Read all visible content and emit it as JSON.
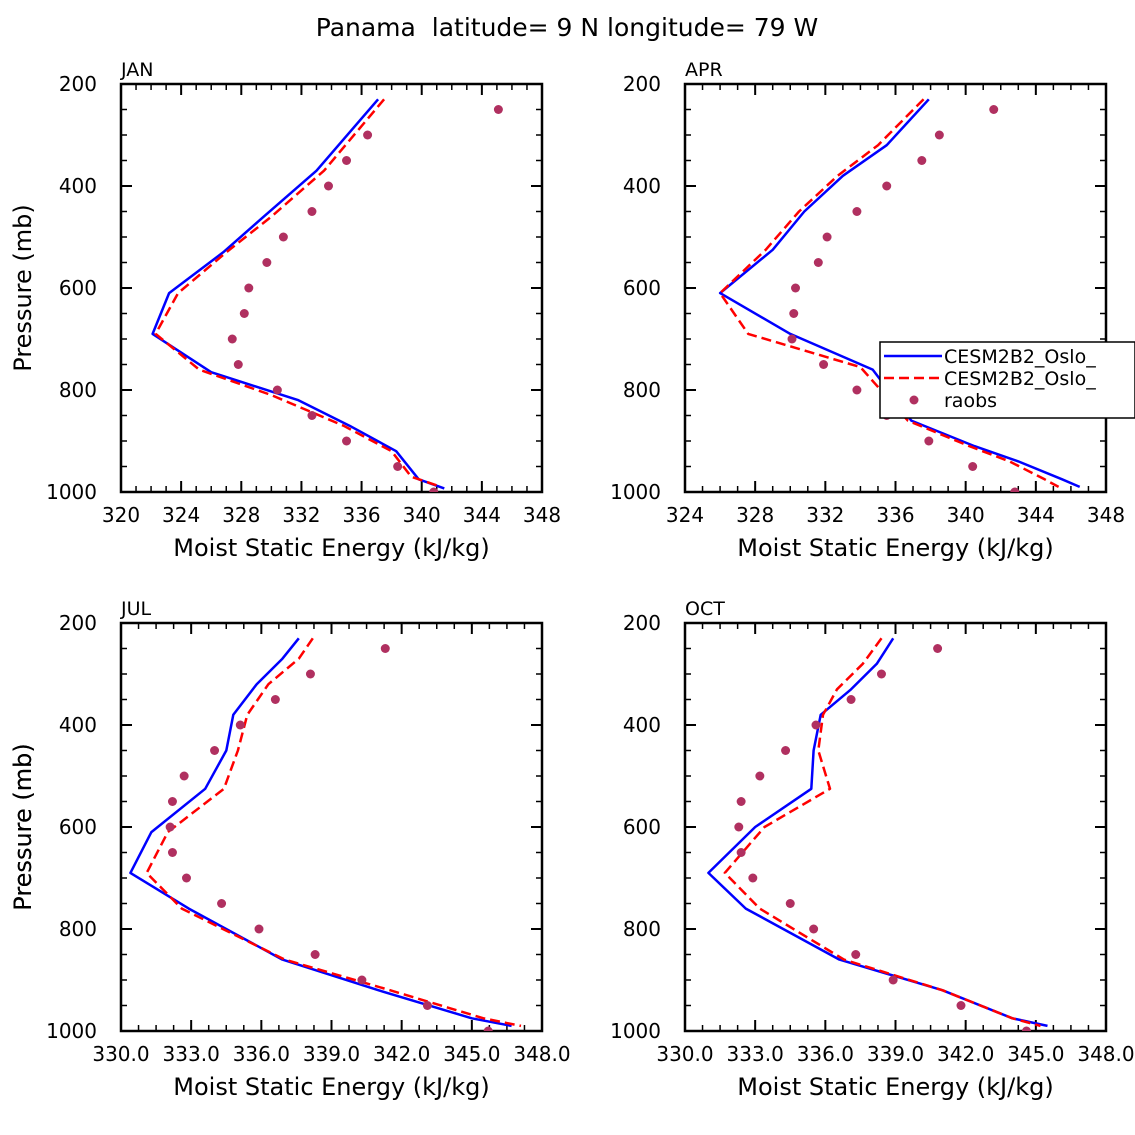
{
  "title": "Panama  latitude= 9 N longitude= 79 W",
  "colors": {
    "model1": "#0000ff",
    "model2": "#ff0000",
    "raobs": "#b03060",
    "axis": "#000000"
  },
  "legend": {
    "panel": "APR",
    "entries": [
      {
        "label": "CESM2B2_Oslo_",
        "style": "solid",
        "color": "#0000ff"
      },
      {
        "label": "CESM2B2_Oslo_",
        "style": "dashed",
        "color": "#ff0000"
      },
      {
        "label": "raobs",
        "style": "marker",
        "color": "#b03060"
      }
    ]
  },
  "chart_data": [
    {
      "type": "line",
      "month": "JAN",
      "xlabel": "Moist Static Energy (kJ/kg)",
      "ylabel": "Pressure (mb)",
      "xlim": [
        320,
        348
      ],
      "ylim": [
        1000,
        200
      ],
      "xticks": [
        "320",
        "324",
        "328",
        "332",
        "336",
        "340",
        "344",
        "348"
      ],
      "yticks": [
        "200",
        "400",
        "600",
        "800",
        "1000"
      ],
      "series": [
        {
          "name": "CESM2B2_Oslo_",
          "style": "solid",
          "points": [
            [
              337.1,
              230
            ],
            [
              333.0,
              370
            ],
            [
              329.5,
              460
            ],
            [
              326.8,
              530
            ],
            [
              323.2,
              610
            ],
            [
              322.1,
              690
            ],
            [
              326.0,
              765
            ],
            [
              331.8,
              820
            ],
            [
              335.2,
              870
            ],
            [
              338.3,
              920
            ],
            [
              339.8,
              975
            ],
            [
              341.5,
              993
            ]
          ]
        },
        {
          "name": "CESM2B2_Oslo_",
          "style": "dashed",
          "points": [
            [
              337.5,
              230
            ],
            [
              333.5,
              370
            ],
            [
              330.0,
              460
            ],
            [
              327.0,
              530
            ],
            [
              323.8,
              610
            ],
            [
              322.3,
              690
            ],
            [
              325.2,
              760
            ],
            [
              330.0,
              810
            ],
            [
              334.8,
              870
            ],
            [
              338.0,
              920
            ],
            [
              339.3,
              970
            ],
            [
              341.3,
              990
            ]
          ]
        },
        {
          "name": "raobs",
          "style": "marker",
          "points": [
            [
              345.1,
              250
            ],
            [
              336.4,
              300
            ],
            [
              335.0,
              350
            ],
            [
              333.8,
              400
            ],
            [
              332.7,
              450
            ],
            [
              330.8,
              500
            ],
            [
              329.7,
              550
            ],
            [
              328.5,
              600
            ],
            [
              328.2,
              650
            ],
            [
              327.4,
              700
            ],
            [
              327.8,
              750
            ],
            [
              330.4,
              800
            ],
            [
              332.7,
              850
            ],
            [
              335.0,
              900
            ],
            [
              338.4,
              950
            ],
            [
              340.8,
              1000
            ]
          ]
        }
      ]
    },
    {
      "type": "line",
      "month": "APR",
      "xlabel": "Moist Static Energy (kJ/kg)",
      "ylabel": "",
      "xlim": [
        324,
        348
      ],
      "ylim": [
        1000,
        200
      ],
      "xticks": [
        "324",
        "328",
        "332",
        "336",
        "340",
        "344",
        "348"
      ],
      "yticks": [
        "200",
        "400",
        "600",
        "800",
        "1000"
      ],
      "series": [
        {
          "name": "CESM2B2_Oslo_",
          "style": "solid",
          "points": [
            [
              337.9,
              230
            ],
            [
              335.5,
              320
            ],
            [
              333.0,
              380
            ],
            [
              330.8,
              450
            ],
            [
              329.0,
              525
            ],
            [
              326.0,
              610
            ],
            [
              330.0,
              690
            ],
            [
              334.7,
              760
            ],
            [
              336.9,
              860
            ],
            [
              340.5,
              910
            ],
            [
              343.0,
              940
            ],
            [
              345.5,
              975
            ],
            [
              346.5,
              990
            ]
          ]
        },
        {
          "name": "CESM2B2_Oslo_",
          "style": "dashed",
          "points": [
            [
              337.6,
              230
            ],
            [
              335.0,
              320
            ],
            [
              332.7,
              380
            ],
            [
              330.5,
              450
            ],
            [
              328.6,
              525
            ],
            [
              326.0,
              610
            ],
            [
              327.6,
              690
            ],
            [
              334.0,
              755
            ],
            [
              336.7,
              860
            ],
            [
              340.2,
              910
            ],
            [
              342.5,
              940
            ],
            [
              344.5,
              975
            ],
            [
              345.3,
              990
            ]
          ]
        },
        {
          "name": "raobs",
          "style": "marker",
          "points": [
            [
              341.6,
              250
            ],
            [
              338.5,
              300
            ],
            [
              337.5,
              350
            ],
            [
              335.5,
              400
            ],
            [
              333.8,
              450
            ],
            [
              332.1,
              500
            ],
            [
              331.6,
              550
            ],
            [
              330.3,
              600
            ],
            [
              330.2,
              650
            ],
            [
              330.1,
              700
            ],
            [
              331.9,
              750
            ],
            [
              333.8,
              800
            ],
            [
              335.5,
              850
            ],
            [
              337.9,
              900
            ],
            [
              340.4,
              950
            ],
            [
              342.8,
              1000
            ]
          ]
        }
      ]
    },
    {
      "type": "line",
      "month": "JUL",
      "xlabel": "Moist Static Energy (kJ/kg)",
      "ylabel": "Pressure (mb)",
      "xlim": [
        330,
        348
      ],
      "ylim": [
        1000,
        200
      ],
      "xticks": [
        "330.0",
        "333.0",
        "336.0",
        "339.0",
        "342.0",
        "345.0",
        "348.0"
      ],
      "yticks": [
        "200",
        "400",
        "600",
        "800",
        "1000"
      ],
      "series": [
        {
          "name": "CESM2B2_Oslo_",
          "style": "solid",
          "points": [
            [
              337.6,
              230
            ],
            [
              336.9,
              270
            ],
            [
              335.8,
              320
            ],
            [
              334.8,
              380
            ],
            [
              334.5,
              450
            ],
            [
              333.6,
              525
            ],
            [
              331.3,
              610
            ],
            [
              330.4,
              690
            ],
            [
              332.9,
              760
            ],
            [
              336.9,
              860
            ],
            [
              341.0,
              920
            ],
            [
              345.0,
              975
            ],
            [
              346.7,
              990
            ]
          ]
        },
        {
          "name": "CESM2B2_Oslo_",
          "style": "dashed",
          "points": [
            [
              338.2,
              230
            ],
            [
              337.6,
              270
            ],
            [
              336.3,
              320
            ],
            [
              335.4,
              380
            ],
            [
              335.0,
              450
            ],
            [
              334.4,
              525
            ],
            [
              332.0,
              610
            ],
            [
              331.1,
              690
            ],
            [
              332.6,
              760
            ],
            [
              337.0,
              860
            ],
            [
              341.5,
              920
            ],
            [
              345.5,
              975
            ],
            [
              347.1,
              990
            ]
          ]
        },
        {
          "name": "raobs",
          "style": "marker",
          "points": [
            [
              341.3,
              250
            ],
            [
              338.1,
              300
            ],
            [
              336.6,
              350
            ],
            [
              335.1,
              400
            ],
            [
              334.0,
              450
            ],
            [
              332.7,
              500
            ],
            [
              332.2,
              550
            ],
            [
              332.1,
              600
            ],
            [
              332.2,
              650
            ],
            [
              332.8,
              700
            ],
            [
              334.3,
              750
            ],
            [
              335.9,
              800
            ],
            [
              338.3,
              850
            ],
            [
              340.3,
              900
            ],
            [
              343.1,
              950
            ],
            [
              345.7,
              1000
            ]
          ]
        }
      ]
    },
    {
      "type": "line",
      "month": "OCT",
      "xlabel": "Moist Static Energy (kJ/kg)",
      "ylabel": "Pressure (mb)",
      "xlim": [
        330,
        348
      ],
      "ylim": [
        1000,
        200
      ],
      "xticks": [
        "330.0",
        "333.0",
        "336.0",
        "339.0",
        "342.0",
        "345.0",
        "348.0"
      ],
      "yticks": [
        "200",
        "400",
        "600",
        "800",
        "1000"
      ],
      "series": [
        {
          "name": "CESM2B2_Oslo_",
          "style": "solid",
          "points": [
            [
              338.9,
              230
            ],
            [
              338.2,
              280
            ],
            [
              337.1,
              330
            ],
            [
              335.8,
              380
            ],
            [
              335.5,
              450
            ],
            [
              335.4,
              525
            ],
            [
              333.0,
              600
            ],
            [
              331.0,
              690
            ],
            [
              332.6,
              760
            ],
            [
              336.6,
              860
            ],
            [
              341.0,
              920
            ],
            [
              344.0,
              975
            ],
            [
              345.5,
              990
            ]
          ]
        },
        {
          "name": "CESM2B2_Oslo_",
          "style": "dashed",
          "points": [
            [
              338.4,
              230
            ],
            [
              337.6,
              280
            ],
            [
              336.5,
              330
            ],
            [
              335.9,
              380
            ],
            [
              335.7,
              450
            ],
            [
              336.2,
              525
            ],
            [
              333.4,
              600
            ],
            [
              331.7,
              690
            ],
            [
              333.2,
              760
            ],
            [
              336.8,
              860
            ],
            [
              341.0,
              920
            ],
            [
              344.0,
              975
            ],
            [
              345.2,
              990
            ]
          ]
        },
        {
          "name": "raobs",
          "style": "marker",
          "points": [
            [
              340.8,
              250
            ],
            [
              338.4,
              300
            ],
            [
              337.1,
              350
            ],
            [
              335.6,
              400
            ],
            [
              334.3,
              450
            ],
            [
              333.2,
              500
            ],
            [
              332.4,
              550
            ],
            [
              332.3,
              600
            ],
            [
              332.4,
              650
            ],
            [
              332.9,
              700
            ],
            [
              334.5,
              750
            ],
            [
              335.5,
              800
            ],
            [
              337.3,
              850
            ],
            [
              338.9,
              900
            ],
            [
              341.8,
              950
            ],
            [
              344.6,
              1000
            ]
          ]
        }
      ]
    }
  ]
}
